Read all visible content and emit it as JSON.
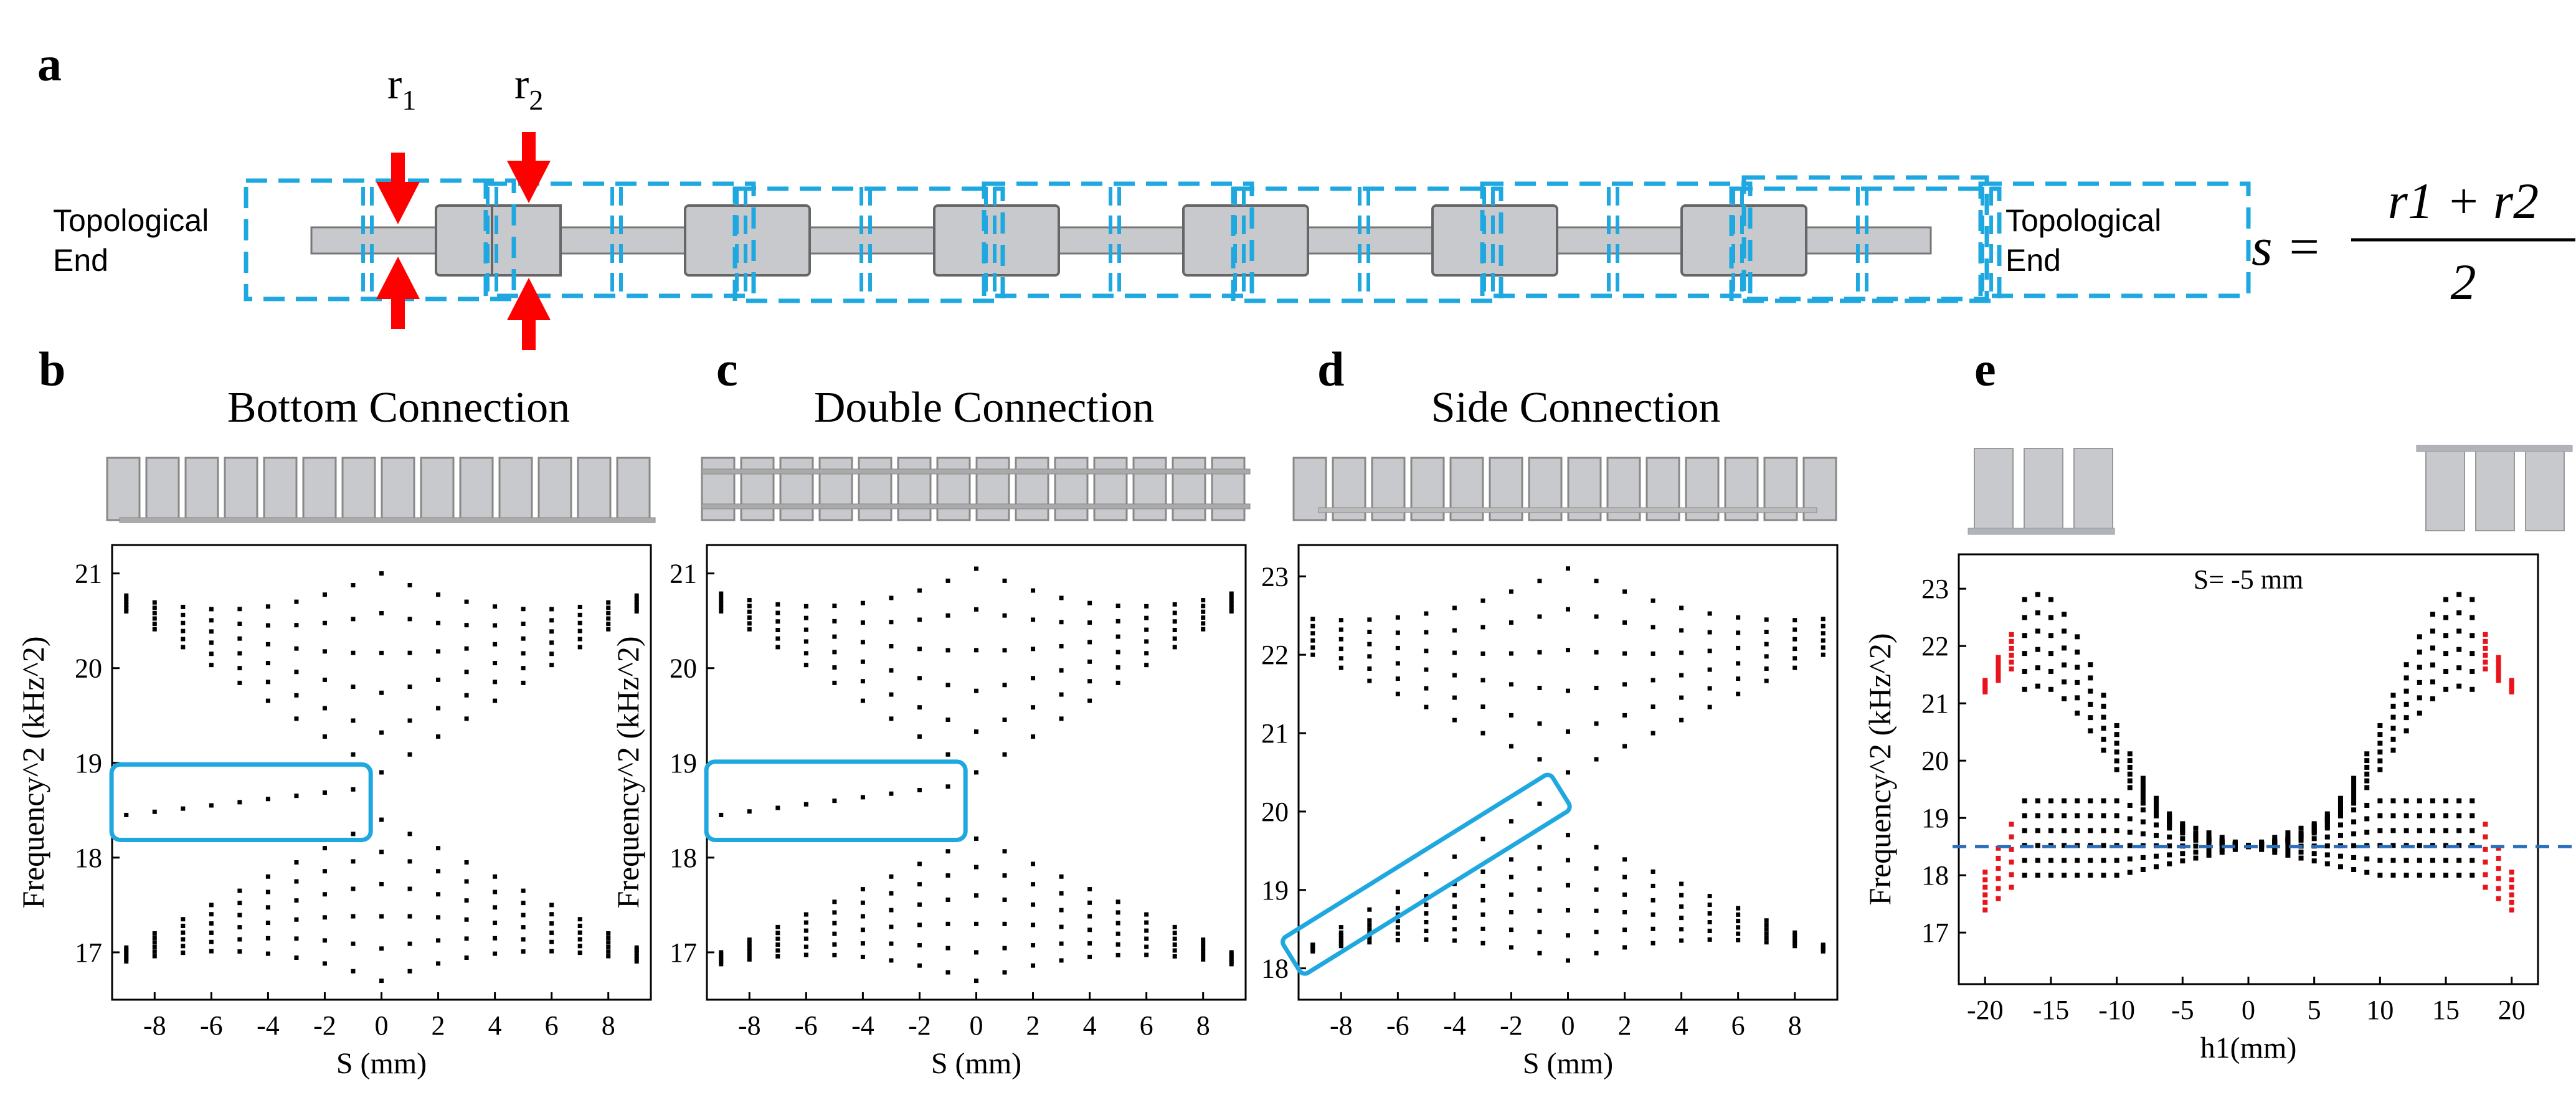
{
  "panel_labels": {
    "a": "a",
    "b": "b",
    "c": "c",
    "d": "d",
    "e": "e"
  },
  "panel_a": {
    "r1_label": "r",
    "r1_sub": "1",
    "r2_label": "r",
    "r2_sub": "2",
    "left_end_line1": "Topological",
    "left_end_line2": "End",
    "right_end_line1": "Topological",
    "right_end_line2": "End",
    "formula_lhs": "s =",
    "formula_numerator": "r1 + r2",
    "formula_denominator": "2",
    "colors": {
      "arrow": "#ff0000",
      "dashed_box": "#1fa8e0",
      "resonator": "#c8c9cc"
    }
  },
  "panel_b_title": "Bottom Connection",
  "panel_c_title": "Double Connection",
  "panel_d_title": "Side Connection",
  "panel_e_annotation": "S= -5 mm",
  "chart_data": [
    {
      "panel": "b",
      "type": "scatter",
      "title": "Bottom Connection",
      "xlabel": "S (mm)",
      "ylabel": "Frequency^2 (kHz^2)",
      "xlim": [
        -9.5,
        9.5
      ],
      "ylim": [
        16.5,
        21.3
      ],
      "xticks": [
        -8,
        -6,
        -4,
        -2,
        0,
        2,
        4,
        6,
        8
      ],
      "yticks": [
        17,
        18,
        19,
        20,
        21
      ],
      "s_values": [
        -9,
        -8,
        -7,
        -6,
        -5,
        -4,
        -3,
        -2,
        -1,
        0,
        1,
        2,
        3,
        4,
        5,
        6,
        7,
        8,
        9
      ],
      "bands": {
        "upper_band": {
          "top": 21.0,
          "bottom_edge": 20.6,
          "bottom_center": 18.9,
          "modes": 6
        },
        "lower_band": {
          "bottom": 16.7,
          "top_edge": 17.05,
          "top_center": 18.4,
          "modes": 6
        },
        "edge_state": {
          "s_range": [
            -9,
            -1
          ],
          "frequency": [
            18.45,
            18.72
          ]
        }
      },
      "highlight_color": "#1fa8e0"
    },
    {
      "panel": "c",
      "type": "scatter",
      "title": "Double Connection",
      "xlabel": "S (mm)",
      "ylabel": "Frequency^2 (kHz^2)",
      "xlim": [
        -9.5,
        9.5
      ],
      "ylim": [
        16.5,
        21.3
      ],
      "xticks": [
        -8,
        -6,
        -4,
        -2,
        0,
        2,
        4,
        6,
        8
      ],
      "yticks": [
        17,
        18,
        19,
        20,
        21
      ],
      "s_values": [
        -9,
        -8,
        -7,
        -6,
        -5,
        -4,
        -3,
        -2,
        -1,
        0,
        1,
        2,
        3,
        4,
        5,
        6,
        7,
        8,
        9
      ],
      "bands": {
        "upper_band": {
          "top": 21.05,
          "bottom_edge": 20.6,
          "bottom_center": 18.9,
          "modes": 6
        },
        "lower_band": {
          "bottom": 16.7,
          "top_edge": 17.0,
          "top_center": 18.2,
          "modes": 6
        },
        "edge_state": {
          "s_range": [
            -9,
            -1
          ],
          "frequency": [
            18.45,
            18.75
          ]
        }
      },
      "highlight_color": "#1fa8e0"
    },
    {
      "panel": "d",
      "type": "scatter",
      "title": "Side Connection",
      "xlabel": "S (mm)",
      "ylabel": "",
      "xlim": [
        -9.5,
        9.5
      ],
      "ylim": [
        17.6,
        23.4
      ],
      "xticks": [
        -8,
        -6,
        -4,
        -2,
        0,
        2,
        4,
        6,
        8
      ],
      "yticks": [
        18,
        19,
        20,
        21,
        22,
        23
      ],
      "s_values": [
        -9,
        -8,
        -7,
        -6,
        -5,
        -4,
        -3,
        -2,
        -1,
        0,
        1,
        2,
        3,
        4,
        5,
        6,
        7,
        8,
        9
      ],
      "bands": {
        "upper_band": {
          "top": 23.1,
          "bottom_edge": 22.0,
          "bottom_center": 20.5,
          "modes": 6
        },
        "lower_band": {
          "bottom": 18.1,
          "top_edge": 18.3,
          "top_center": 19.7,
          "modes": 6
        },
        "edge_state": {
          "s_range": [
            -9,
            -1
          ],
          "frequency": [
            18.3,
            20.1
          ]
        }
      },
      "highlight_color": "#1fa8e0"
    },
    {
      "panel": "e",
      "type": "scatter",
      "title": "",
      "annotation": "S= -5 mm",
      "xlabel": "h1(mm)",
      "ylabel": "Frequency^2 (kHz^2)",
      "xlim": [
        -22,
        22
      ],
      "ylim": [
        16.1,
        23.6
      ],
      "xticks": [
        -20,
        -15,
        -10,
        -5,
        0,
        5,
        10,
        15,
        20
      ],
      "yticks": [
        17,
        18,
        19,
        20,
        21,
        22,
        23
      ],
      "reference_line": 18.5,
      "upper_band_peak": {
        "h1": [
          -16,
          16
        ],
        "top": 22.9,
        "bottom": 21.3
      },
      "lower_band_peak": {
        "h1": [
          -16,
          16
        ],
        "top": 19.3,
        "bottom": 18.0
      },
      "crossing": {
        "h1": 0,
        "frequency": 18.5
      },
      "edge_regions": {
        "h1": [
          -21,
          -18,
          18,
          21
        ],
        "upper": [
          21.0,
          22.2
        ],
        "lower": [
          16.8,
          19.0
        ]
      },
      "colors": {
        "bulk": "#000000",
        "edge": "#e8141c",
        "reference_line": "#2a6ebb"
      }
    }
  ]
}
